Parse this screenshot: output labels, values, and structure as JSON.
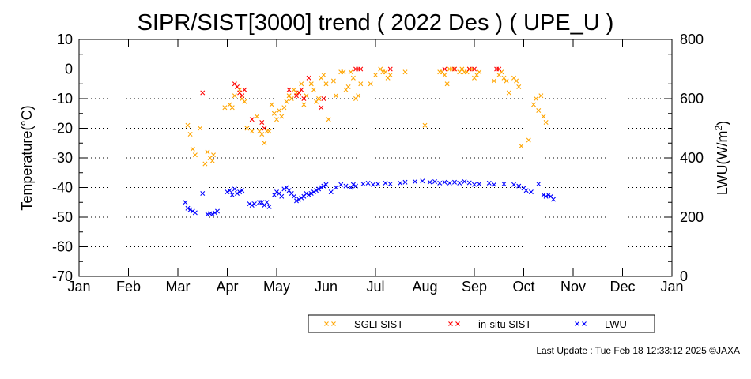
{
  "chart_data": {
    "type": "scatter",
    "title": "SIPR/SIST[3000] trend ( 2022 Des ) ( UPE_U )",
    "ylabel": "Temperature(°C)",
    "y2label_main": "LWU(W/m",
    "y2label_sup": "2",
    "y2label_end": ")",
    "ylim": [
      -70,
      10
    ],
    "y2lim": [
      0,
      800
    ],
    "yticks": [
      "10",
      "0",
      "-10",
      "-20",
      "-30",
      "-40",
      "-50",
      "-60",
      "-70"
    ],
    "y2ticks": [
      "800",
      "600",
      "400",
      "200",
      "0"
    ],
    "months": [
      "Jan",
      "Feb",
      "Mar",
      "Apr",
      "May",
      "Jun",
      "Jul",
      "Aug",
      "Sep",
      "Oct",
      "Nov",
      "Dec",
      "Jan"
    ],
    "grid": "horizontal dotted at every 10°C",
    "legend_position": "bottom-right",
    "colors": {
      "sgli": "#ffa500",
      "insitu": "#ff0000",
      "lwu": "#0000ff"
    },
    "series": [
      {
        "name": "SGLI SIST",
        "axis": "left",
        "color": "#ffa500",
        "points": [
          [
            2.2,
            -19
          ],
          [
            2.25,
            -22
          ],
          [
            2.3,
            -27
          ],
          [
            2.35,
            -29
          ],
          [
            2.45,
            -20
          ],
          [
            2.55,
            -32
          ],
          [
            2.6,
            -28
          ],
          [
            2.65,
            -30
          ],
          [
            2.7,
            -31
          ],
          [
            2.72,
            -29
          ],
          [
            2.95,
            -13
          ],
          [
            3.05,
            -12
          ],
          [
            3.1,
            -13
          ],
          [
            3.15,
            -9
          ],
          [
            3.25,
            -7
          ],
          [
            3.3,
            -10
          ],
          [
            3.35,
            -11
          ],
          [
            3.4,
            -20
          ],
          [
            3.5,
            -21
          ],
          [
            3.6,
            -16
          ],
          [
            3.65,
            -21
          ],
          [
            3.7,
            -22
          ],
          [
            3.75,
            -25
          ],
          [
            3.8,
            -21
          ],
          [
            3.85,
            -21
          ],
          [
            3.9,
            -12
          ],
          [
            3.95,
            -15
          ],
          [
            4.0,
            -17
          ],
          [
            4.05,
            -14
          ],
          [
            4.1,
            -16
          ],
          [
            4.15,
            -13
          ],
          [
            4.2,
            -11
          ],
          [
            4.25,
            -9
          ],
          [
            4.3,
            -10
          ],
          [
            4.35,
            -7
          ],
          [
            4.4,
            -8
          ],
          [
            4.45,
            -8
          ],
          [
            4.5,
            -5
          ],
          [
            4.55,
            -12
          ],
          [
            4.6,
            -9
          ],
          [
            4.7,
            -5
          ],
          [
            4.75,
            -7
          ],
          [
            4.8,
            -11
          ],
          [
            4.85,
            -10
          ],
          [
            4.9,
            -3
          ],
          [
            4.95,
            -2
          ],
          [
            5.0,
            -5
          ],
          [
            5.05,
            -17
          ],
          [
            5.15,
            -4
          ],
          [
            5.2,
            -9
          ],
          [
            5.3,
            -1
          ],
          [
            5.35,
            -1
          ],
          [
            5.4,
            -7
          ],
          [
            5.45,
            -6
          ],
          [
            5.5,
            -1
          ],
          [
            5.55,
            -3
          ],
          [
            5.6,
            -10
          ],
          [
            5.65,
            -9
          ],
          [
            5.7,
            -5
          ],
          [
            5.9,
            -5
          ],
          [
            6.0,
            -2
          ],
          [
            6.1,
            0
          ],
          [
            6.15,
            -1
          ],
          [
            6.2,
            -1
          ],
          [
            6.25,
            -3
          ],
          [
            6.3,
            -2
          ],
          [
            6.6,
            -1
          ],
          [
            7.0,
            -19
          ],
          [
            7.3,
            -1
          ],
          [
            7.35,
            -1
          ],
          [
            7.4,
            -2
          ],
          [
            7.45,
            -5
          ],
          [
            7.5,
            0
          ],
          [
            7.55,
            0
          ],
          [
            7.6,
            0
          ],
          [
            7.7,
            -1
          ],
          [
            7.75,
            0
          ],
          [
            7.8,
            -1
          ],
          [
            7.85,
            -1
          ],
          [
            7.9,
            0
          ],
          [
            7.95,
            0
          ],
          [
            8.0,
            -3
          ],
          [
            8.05,
            -2
          ],
          [
            8.1,
            -1
          ],
          [
            8.4,
            -4
          ],
          [
            8.5,
            -2
          ],
          [
            8.55,
            -1
          ],
          [
            8.6,
            -3
          ],
          [
            8.65,
            -4
          ],
          [
            8.7,
            -8
          ],
          [
            8.8,
            -3
          ],
          [
            8.85,
            -4
          ],
          [
            8.9,
            -6
          ],
          [
            8.95,
            -26
          ],
          [
            9.1,
            -24
          ],
          [
            9.2,
            -12
          ],
          [
            9.25,
            -10
          ],
          [
            9.3,
            -14
          ],
          [
            9.35,
            -9
          ],
          [
            9.4,
            -16
          ],
          [
            9.45,
            -18
          ]
        ]
      },
      {
        "name": "in-situ SIST",
        "axis": "left",
        "color": "#ff0000",
        "points": [
          [
            2.5,
            -8
          ],
          [
            3.15,
            -5
          ],
          [
            3.2,
            -6
          ],
          [
            3.25,
            -8
          ],
          [
            3.3,
            -9
          ],
          [
            3.35,
            -7
          ],
          [
            3.5,
            -17
          ],
          [
            3.7,
            -18
          ],
          [
            3.75,
            -20
          ],
          [
            4.25,
            -7
          ],
          [
            4.4,
            -9
          ],
          [
            4.45,
            -8
          ],
          [
            4.5,
            -7
          ],
          [
            4.55,
            -10
          ],
          [
            4.65,
            -3
          ],
          [
            4.9,
            -13
          ],
          [
            4.95,
            -10
          ],
          [
            5.6,
            0
          ],
          [
            5.65,
            0
          ],
          [
            5.7,
            0
          ],
          [
            6.3,
            0
          ],
          [
            7.4,
            0
          ],
          [
            7.6,
            0
          ],
          [
            7.9,
            0
          ],
          [
            8.0,
            0
          ],
          [
            8.45,
            0
          ],
          [
            8.5,
            0
          ]
        ]
      },
      {
        "name": "LWU",
        "axis": "right",
        "color": "#0000ff",
        "points": [
          [
            2.15,
            250
          ],
          [
            2.2,
            230
          ],
          [
            2.25,
            225
          ],
          [
            2.3,
            220
          ],
          [
            2.35,
            215
          ],
          [
            2.5,
            280
          ],
          [
            2.6,
            210
          ],
          [
            2.65,
            212
          ],
          [
            2.7,
            210
          ],
          [
            2.75,
            215
          ],
          [
            2.8,
            220
          ],
          [
            3.0,
            285
          ],
          [
            3.05,
            290
          ],
          [
            3.1,
            275
          ],
          [
            3.15,
            295
          ],
          [
            3.2,
            280
          ],
          [
            3.25,
            285
          ],
          [
            3.3,
            290
          ],
          [
            3.45,
            245
          ],
          [
            3.5,
            240
          ],
          [
            3.55,
            245
          ],
          [
            3.65,
            250
          ],
          [
            3.7,
            250
          ],
          [
            3.75,
            240
          ],
          [
            3.8,
            250
          ],
          [
            3.85,
            235
          ],
          [
            3.95,
            275
          ],
          [
            4.0,
            285
          ],
          [
            4.05,
            280
          ],
          [
            4.1,
            270
          ],
          [
            4.15,
            295
          ],
          [
            4.2,
            300
          ],
          [
            4.25,
            290
          ],
          [
            4.3,
            280
          ],
          [
            4.35,
            270
          ],
          [
            4.4,
            255
          ],
          [
            4.45,
            260
          ],
          [
            4.5,
            265
          ],
          [
            4.55,
            270
          ],
          [
            4.6,
            280
          ],
          [
            4.65,
            275
          ],
          [
            4.7,
            280
          ],
          [
            4.75,
            285
          ],
          [
            4.8,
            290
          ],
          [
            4.85,
            295
          ],
          [
            4.9,
            300
          ],
          [
            4.95,
            305
          ],
          [
            5.0,
            310
          ],
          [
            5.1,
            285
          ],
          [
            5.2,
            300
          ],
          [
            5.3,
            310
          ],
          [
            5.4,
            305
          ],
          [
            5.5,
            300
          ],
          [
            5.55,
            310
          ],
          [
            5.6,
            305
          ],
          [
            5.75,
            312
          ],
          [
            5.85,
            315
          ],
          [
            5.95,
            310
          ],
          [
            6.05,
            312
          ],
          [
            6.2,
            315
          ],
          [
            6.3,
            312
          ],
          [
            6.5,
            315
          ],
          [
            6.6,
            318
          ],
          [
            6.8,
            320
          ],
          [
            6.95,
            322
          ],
          [
            7.1,
            318
          ],
          [
            7.2,
            320
          ],
          [
            7.3,
            315
          ],
          [
            7.4,
            318
          ],
          [
            7.5,
            315
          ],
          [
            7.6,
            318
          ],
          [
            7.7,
            315
          ],
          [
            7.8,
            320
          ],
          [
            7.9,
            316
          ],
          [
            8.0,
            310
          ],
          [
            8.1,
            312
          ],
          [
            8.3,
            315
          ],
          [
            8.4,
            310
          ],
          [
            8.6,
            312
          ],
          [
            8.8,
            310
          ],
          [
            8.9,
            305
          ],
          [
            9.0,
            298
          ],
          [
            9.05,
            290
          ],
          [
            9.15,
            285
          ],
          [
            9.3,
            312
          ],
          [
            9.4,
            275
          ],
          [
            9.45,
            270
          ],
          [
            9.5,
            275
          ],
          [
            9.55,
            270
          ],
          [
            9.6,
            260
          ]
        ]
      }
    ]
  },
  "legend": [
    {
      "label": "SGLI SIST",
      "color": "#ffa500"
    },
    {
      "label": "in-situ SIST",
      "color": "#ff0000"
    },
    {
      "label": "LWU",
      "color": "#0000ff"
    }
  ],
  "footer": "Last Update : Tue Feb 18 12:33:12 2025  ©JAXA"
}
